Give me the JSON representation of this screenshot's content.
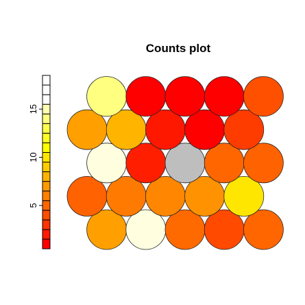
{
  "chart_data": {
    "type": "heatmap",
    "subtype": "som-counts-hexagonal",
    "title": "Counts plot",
    "legend": {
      "placement": "left",
      "tick_labels": [
        "5",
        "10",
        "15"
      ],
      "tick_values": [
        5,
        10,
        15
      ],
      "range": [
        1,
        18
      ],
      "colors": [
        "#FF0000",
        "#FF1A00",
        "#FF3300",
        "#FF4D00",
        "#FF6600",
        "#FF8000",
        "#FF9900",
        "#FFB300",
        "#FFCC00",
        "#FFE600",
        "#FFFF00",
        "#FFFF26",
        "#FFFF4D",
        "#FFFF80",
        "#FFFFB3",
        "#FFFFFF",
        "#FFFFFF",
        "#FFFFFF"
      ]
    },
    "grid": {
      "rows": 5,
      "cols": 5,
      "topology": "hexagonal"
    },
    "cells": [
      {
        "row": 1,
        "col": 1,
        "count": 7,
        "color": "#FFA000"
      },
      {
        "row": 1,
        "col": 2,
        "count": 17,
        "color": "#FFFFE0"
      },
      {
        "row": 1,
        "col": 3,
        "count": 5,
        "color": "#FF6A00"
      },
      {
        "row": 1,
        "col": 4,
        "count": 3,
        "color": "#FF4A00"
      },
      {
        "row": 1,
        "col": 5,
        "count": 5,
        "color": "#FF6600"
      },
      {
        "row": 2,
        "col": 1,
        "count": 4,
        "color": "#FF6200"
      },
      {
        "row": 2,
        "col": 2,
        "count": 6,
        "color": "#FF7A00"
      },
      {
        "row": 2,
        "col": 3,
        "count": 6,
        "color": "#FF8600"
      },
      {
        "row": 2,
        "col": 4,
        "count": 7,
        "color": "#FF9200"
      },
      {
        "row": 2,
        "col": 5,
        "count": 11,
        "color": "#FFE600"
      },
      {
        "row": 3,
        "col": 1,
        "count": 17,
        "color": "#FFFFE0"
      },
      {
        "row": 3,
        "col": 2,
        "count": 1,
        "color": "#FF1E00"
      },
      {
        "row": 3,
        "col": 3,
        "count": 0,
        "color": "#BEBEBE"
      },
      {
        "row": 3,
        "col": 4,
        "count": 5,
        "color": "#FF6600"
      },
      {
        "row": 3,
        "col": 5,
        "count": 5,
        "color": "#FF6200"
      },
      {
        "row": 4,
        "col": 1,
        "count": 8,
        "color": "#FFA000"
      },
      {
        "row": 4,
        "col": 2,
        "count": 9,
        "color": "#FFB400"
      },
      {
        "row": 4,
        "col": 3,
        "count": 1,
        "color": "#FF1800"
      },
      {
        "row": 4,
        "col": 4,
        "count": 1,
        "color": "#FF0000"
      },
      {
        "row": 4,
        "col": 5,
        "count": 3,
        "color": "#FF3C00"
      },
      {
        "row": 5,
        "col": 1,
        "count": 14,
        "color": "#FFFF80"
      },
      {
        "row": 5,
        "col": 2,
        "count": 1,
        "color": "#FF0000"
      },
      {
        "row": 5,
        "col": 3,
        "count": 1,
        "color": "#FF0000"
      },
      {
        "row": 5,
        "col": 4,
        "count": 1,
        "color": "#FF0000"
      },
      {
        "row": 5,
        "col": 5,
        "count": 4,
        "color": "#FF5000"
      }
    ]
  }
}
